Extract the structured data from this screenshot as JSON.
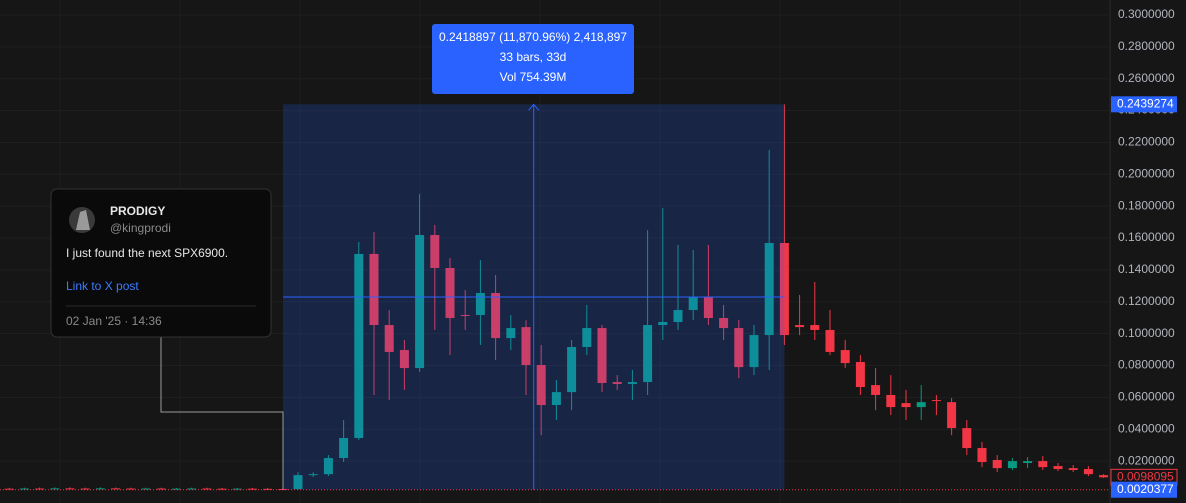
{
  "chart_data": {
    "type": "candlestick",
    "open": [
      0.0027,
      0.0026,
      0.0028,
      0.0027,
      0.0029,
      0.0028,
      0.0027,
      0.0029,
      0.0028,
      0.0027,
      0.0028,
      0.0026,
      0.0027,
      0.0028,
      0.0027,
      0.0026,
      0.0027,
      0.0026,
      0.0025,
      0.0025,
      0.0112,
      0.0118,
      0.0219,
      0.0345,
      0.15,
      0.1054,
      0.0897,
      0.0784,
      0.1619,
      0.1412,
      0.1117,
      0.1117,
      0.1255,
      0.0972,
      0.1041,
      0.0803,
      0.0552,
      0.0633,
      0.0916,
      0.1035,
      0.0696,
      0.0684,
      0.0696,
      0.1054,
      0.1073,
      0.1148,
      0.123,
      0.1098,
      0.1035,
      0.079,
      0.0991,
      0.1569,
      0.1054,
      0.1054,
      0.1023,
      0.0897,
      0.0822,
      0.0677,
      0.0615,
      0.0564,
      0.0539,
      0.0583,
      0.057,
      0.0407,
      0.0282,
      0.0207,
      0.0156,
      0.0188,
      0.02,
      0.0169,
      0.0156,
      0.015,
      0.0112
    ],
    "high": [
      0.0032,
      0.0033,
      0.0034,
      0.0035,
      0.0035,
      0.0033,
      0.0035,
      0.0034,
      0.0033,
      0.0033,
      0.0033,
      0.0032,
      0.0033,
      0.0033,
      0.0032,
      0.0032,
      0.0032,
      0.0031,
      0.003,
      0.013,
      0.013,
      0.0238,
      0.0458,
      0.1575,
      0.1638,
      0.1148,
      0.096,
      0.1876,
      0.1682,
      0.1475,
      0.1274,
      0.1462,
      0.1368,
      0.1117,
      0.1085,
      0.0928,
      0.0709,
      0.096,
      0.118,
      0.1054,
      0.074,
      0.0772,
      0.165,
      0.1788,
      0.1556,
      0.1525,
      0.1556,
      0.118,
      0.1085,
      0.1054,
      0.2153,
      0.2439274,
      0.1243,
      0.1324,
      0.1148,
      0.096,
      0.0866,
      0.0784,
      0.074,
      0.0646,
      0.0677,
      0.0615,
      0.0596,
      0.0458,
      0.032,
      0.0238,
      0.0219,
      0.0225,
      0.0232,
      0.0188,
      0.0175,
      0.0169,
      0.0118
    ],
    "low": [
      0.0021,
      0.0021,
      0.0022,
      0.0022,
      0.0023,
      0.0022,
      0.0022,
      0.0023,
      0.0022,
      0.0022,
      0.0021,
      0.0021,
      0.0022,
      0.0022,
      0.0021,
      0.0021,
      0.0021,
      0.002,
      0.0019,
      0.0020377,
      0.01,
      0.0106,
      0.0194,
      0.0332,
      0.0615,
      0.0583,
      0.0646,
      0.0759,
      0.1023,
      0.0866,
      0.1023,
      0.0929,
      0.0834,
      0.0897,
      0.0615,
      0.0363,
      0.0458,
      0.052,
      0.0866,
      0.0633,
      0.0646,
      0.0583,
      0.0615,
      0.096,
      0.1023,
      0.1085,
      0.1054,
      0.096,
      0.0721,
      0.074,
      0.0772,
      0.0928,
      0.0991,
      0.096,
      0.0866,
      0.0784,
      0.0615,
      0.052,
      0.0489,
      0.0458,
      0.0458,
      0.0489,
      0.0363,
      0.0238,
      0.0163,
      0.0131,
      0.0144,
      0.0156,
      0.0144,
      0.0137,
      0.0131,
      0.0106,
      0.0094
    ],
    "close": [
      0.0026,
      0.0028,
      0.0027,
      0.0029,
      0.0028,
      0.0027,
      0.0029,
      0.0028,
      0.0027,
      0.0028,
      0.0026,
      0.0027,
      0.0028,
      0.0027,
      0.0026,
      0.0027,
      0.0026,
      0.0025,
      0.0024,
      0.0112,
      0.0118,
      0.0219,
      0.0345,
      0.15,
      0.1054,
      0.0885,
      0.0784,
      0.1619,
      0.1412,
      0.1098,
      0.1115,
      0.1255,
      0.0972,
      0.1035,
      0.0803,
      0.0552,
      0.0633,
      0.0916,
      0.1035,
      0.069,
      0.0684,
      0.0696,
      0.1054,
      0.1073,
      0.1148,
      0.123,
      0.1098,
      0.1035,
      0.079,
      0.0991,
      0.1569,
      0.0991,
      0.1041,
      0.1023,
      0.0885,
      0.0815,
      0.0665,
      0.0615,
      0.0539,
      0.0539,
      0.057,
      0.0577,
      0.0407,
      0.0282,
      0.0194,
      0.0156,
      0.02,
      0.02,
      0.0162,
      0.015,
      0.0144,
      0.0118,
      0.0098095
    ],
    "up_color": "#089981",
    "down_color": "#f23645",
    "ylim": [
      -0.0063,
      0.3094
    ],
    "yticks": [
      {
        "value": 0.3,
        "label": "0.3000000"
      },
      {
        "value": 0.28,
        "label": "0.2800000"
      },
      {
        "value": 0.26,
        "label": "0.2600000"
      },
      {
        "value": 0.24,
        "label": "0.2400000"
      },
      {
        "value": 0.22,
        "label": "0.2200000"
      },
      {
        "value": 0.2,
        "label": "0.2000000"
      },
      {
        "value": 0.18,
        "label": "0.1800000"
      },
      {
        "value": 0.16,
        "label": "0.1600000"
      },
      {
        "value": 0.14,
        "label": "0.1400000"
      },
      {
        "value": 0.12,
        "label": "0.1200000"
      },
      {
        "value": 0.1,
        "label": "0.1000000"
      },
      {
        "value": 0.08,
        "label": "0.0800000"
      },
      {
        "value": 0.06,
        "label": "0.0600000"
      },
      {
        "value": 0.04,
        "label": "0.0400000"
      },
      {
        "value": 0.02,
        "label": "0.0200000"
      }
    ],
    "grid": true,
    "price_labels": [
      0.2439274,
      0.0098095,
      0.0020377
    ],
    "measure": {
      "lines": [
        "0.2418897 (11,870.96%) 2,418,897",
        "33 bars, 33d",
        "Vol 754.39M"
      ]
    },
    "post": {
      "name": "PRODIGY",
      "handle": "@kingprodi",
      "text": "I just found the next SPX6900.",
      "link": "Link to X post",
      "date": "02 Jan '25 · 14:36"
    }
  }
}
